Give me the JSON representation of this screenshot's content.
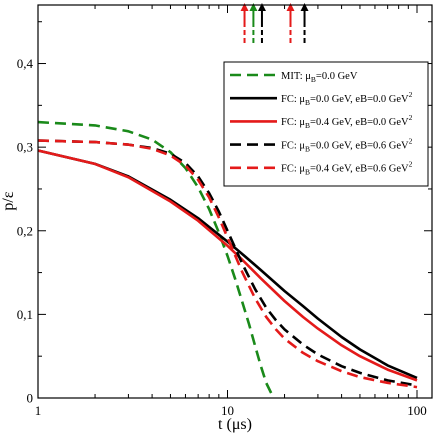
{
  "chart_data": {
    "type": "line",
    "xlabel": "t (μs)",
    "ylabel": "p/ε",
    "x_scale": "log",
    "xlim": [
      1,
      120
    ],
    "ylim": [
      0,
      0.47
    ],
    "x_ticks": [
      {
        "value": 1,
        "label": "1"
      },
      {
        "value": 10,
        "label": "10"
      },
      {
        "value": 100,
        "label": "100"
      }
    ],
    "y_ticks": [
      {
        "value": 0,
        "label": "0"
      },
      {
        "value": 0.1,
        "label": "0,1"
      },
      {
        "value": 0.2,
        "label": "0,2"
      },
      {
        "value": 0.3,
        "label": "0,3"
      },
      {
        "value": 0.4,
        "label": "0,4"
      }
    ],
    "grid": false,
    "legend_position": "top-right",
    "series": [
      {
        "name": "MIT: μB=0.0 GeV",
        "legend": {
          "pre": "MIT: μ",
          "sub": "B",
          "mid": "=0.0 GeV",
          "sup": ""
        },
        "color": "#1a8a1a",
        "dash": "dashed",
        "x": [
          1,
          2,
          3,
          4,
          5,
          6,
          7,
          8,
          9,
          10,
          11,
          12,
          13,
          14,
          15,
          16,
          17.5
        ],
        "y": [
          0.33,
          0.326,
          0.319,
          0.309,
          0.294,
          0.275,
          0.252,
          0.226,
          0.198,
          0.17,
          0.142,
          0.114,
          0.088,
          0.062,
          0.038,
          0.018,
          0.0
        ]
      },
      {
        "name": "FC: μB=0.0 GeV, eB=0.0 GeV2",
        "legend": {
          "pre": "FC: μ",
          "sub": "B",
          "mid": "=0.0 GeV, eB=0.0 GeV",
          "sup": "2"
        },
        "color": "#000000",
        "dash": "solid",
        "x": [
          1,
          2,
          3,
          5,
          7,
          10,
          12,
          15,
          20,
          25,
          30,
          40,
          50,
          70,
          100
        ],
        "y": [
          0.296,
          0.28,
          0.265,
          0.237,
          0.215,
          0.187,
          0.172,
          0.153,
          0.128,
          0.11,
          0.095,
          0.073,
          0.058,
          0.039,
          0.024
        ]
      },
      {
        "name": "FC: μB=0.4 GeV, eB=0.0 GeV2",
        "legend": {
          "pre": "FC: μ",
          "sub": "B",
          "mid": "=0.4 GeV, eB=0.0 GeV",
          "sup": "2"
        },
        "color": "#e41a1a",
        "dash": "solid",
        "x": [
          1,
          2,
          3,
          5,
          7,
          10,
          12,
          15,
          20,
          25,
          30,
          40,
          50,
          70,
          100
        ],
        "y": [
          0.296,
          0.28,
          0.264,
          0.235,
          0.212,
          0.182,
          0.165,
          0.143,
          0.116,
          0.097,
          0.083,
          0.063,
          0.05,
          0.034,
          0.021
        ]
      },
      {
        "name": "FC: μB=0.0 GeV, eB=0.6 GeV2",
        "legend": {
          "pre": "FC: μ",
          "sub": "B",
          "mid": "=0.0 GeV, eB=0.6 GeV",
          "sup": "2"
        },
        "color": "#000000",
        "dash": "dashed",
        "x": [
          1,
          2,
          3,
          4,
          5,
          6,
          7,
          8,
          9,
          10,
          12,
          14,
          16,
          18,
          20,
          25,
          30,
          40,
          50,
          70,
          100
        ],
        "y": [
          0.308,
          0.306,
          0.303,
          0.299,
          0.292,
          0.281,
          0.265,
          0.245,
          0.223,
          0.2,
          0.16,
          0.13,
          0.108,
          0.093,
          0.082,
          0.064,
          0.052,
          0.038,
          0.03,
          0.021,
          0.015
        ]
      },
      {
        "name": "FC: μB=0.4 GeV, eB=0.6 GeV2",
        "legend": {
          "pre": "FC: μ",
          "sub": "B",
          "mid": "=0.4 GeV, eB=0.6 GeV",
          "sup": "2"
        },
        "color": "#e41a1a",
        "dash": "dashed",
        "x": [
          1,
          2,
          3,
          4,
          5,
          6,
          7,
          8,
          9,
          10,
          12,
          14,
          16,
          18,
          20,
          25,
          30,
          40,
          50,
          70,
          100
        ],
        "y": [
          0.308,
          0.306,
          0.303,
          0.298,
          0.29,
          0.278,
          0.261,
          0.24,
          0.216,
          0.192,
          0.15,
          0.119,
          0.097,
          0.082,
          0.071,
          0.054,
          0.044,
          0.032,
          0.025,
          0.018,
          0.013
        ]
      }
    ],
    "markers": [
      {
        "x": 12.3,
        "color": "#e41a1a"
      },
      {
        "x": 13.7,
        "color": "#1a8a1a"
      },
      {
        "x": 15.2,
        "color": "#000000"
      },
      {
        "x": 21.5,
        "color": "#e41a1a"
      },
      {
        "x": 25.5,
        "color": "#000000"
      }
    ]
  }
}
